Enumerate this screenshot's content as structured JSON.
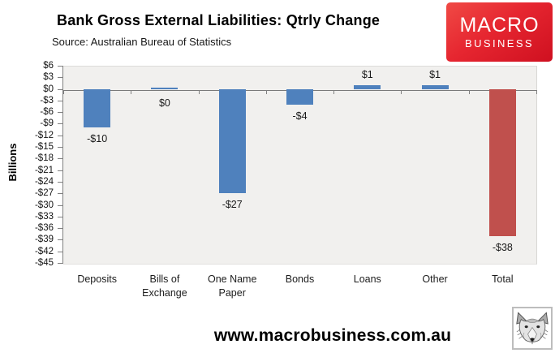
{
  "header": {
    "title": "Bank Gross External Liabilities: Qtrly Change",
    "source": "Source: Australian Bureau of Statistics",
    "logo": {
      "line1": "MACRO",
      "line2": "BUSINESS",
      "bg_color": "#e62630",
      "text_color": "#ffffff"
    }
  },
  "chart_data": {
    "type": "bar",
    "title": "Bank Gross External Liabilities: Qtrly Change",
    "categories": [
      "Deposits",
      "Bills of Exchange",
      "One Name Paper",
      "Bonds",
      "Loans",
      "Other",
      "Total"
    ],
    "values": [
      -10,
      0,
      -27,
      -4,
      1,
      1,
      -38
    ],
    "value_labels": [
      "-$10",
      "$0",
      "-$27",
      "-$4",
      "$1",
      "$1",
      "-$38"
    ],
    "bar_colors": [
      "#4f81bd",
      "#4f81bd",
      "#4f81bd",
      "#4f81bd",
      "#4f81bd",
      "#4f81bd",
      "#c0504d"
    ],
    "blue_color": "#4f81bd",
    "red_color": "#c0504d",
    "xlabel": "",
    "ylabel": "Billions",
    "ylim": [
      -45,
      6
    ],
    "ytick_step": 3,
    "ytick_labels": [
      "$6",
      "$3",
      "$0",
      "-$3",
      "-$6",
      "-$9",
      "-$12",
      "-$15",
      "-$18",
      "-$21",
      "-$24",
      "-$27",
      "-$30",
      "-$33",
      "-$36",
      "-$39",
      "-$42",
      "-$45"
    ],
    "grid": false,
    "legend": "none",
    "plot_bg": "#f1f0ee",
    "axis_color": "#808080"
  },
  "footer": {
    "website": "www.macrobusiness.com.au",
    "fox_icon": "macrobusiness-fox-logo"
  }
}
